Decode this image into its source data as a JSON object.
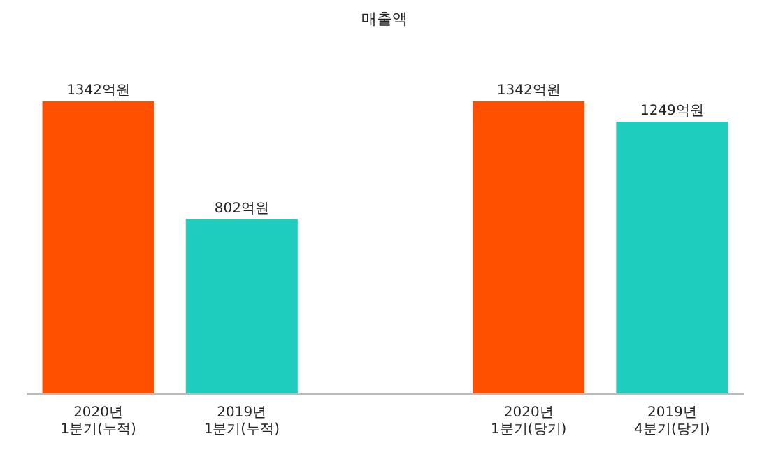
{
  "chart_data": {
    "type": "bar",
    "title": "매출액",
    "categories": [
      "2020년\n1분기(누적)",
      "2019년\n1분기(누적)",
      null,
      "2020년\n1분기(당기)",
      "2019년\n4분기(당기)"
    ],
    "values": [
      1342,
      802,
      null,
      1342,
      1249
    ],
    "colors": [
      "#ff5000",
      "#1ecdbe",
      null,
      "#ff5000",
      "#1ecdbe"
    ],
    "value_labels": [
      "1342억원",
      "802억원",
      null,
      "1342억원",
      "1249억원"
    ],
    "tick_labels": "x"
  }
}
